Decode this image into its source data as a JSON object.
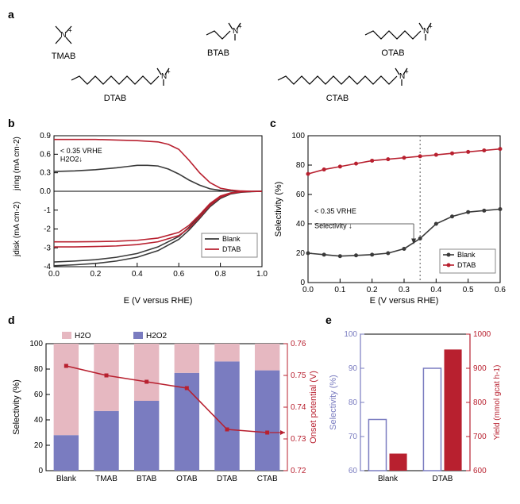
{
  "panel_a": {
    "label": "a",
    "molecules_row1": [
      {
        "name": "TMAB"
      },
      {
        "name": "BTAB"
      },
      {
        "name": "OTAB"
      }
    ],
    "molecules_row2": [
      {
        "name": "DTAB"
      },
      {
        "name": "CTAB"
      }
    ]
  },
  "panel_b": {
    "label": "b",
    "xlabel": "E (V versus RHE)",
    "ylabel_top": "jring (mA cm-2)",
    "ylabel_bot": "jdisk (mA cm-2)",
    "xlim": [
      0.0,
      1.0
    ],
    "xtick_step": 0.2,
    "ytop_lim": [
      0,
      0.9
    ],
    "ytop_ticks": [
      0.0,
      0.3,
      0.6,
      0.9
    ],
    "ybot_lim": [
      -4,
      0
    ],
    "ybot_ticks": [
      -1,
      -2,
      -3,
      -4
    ],
    "annotation1": "< 0.35 VRHE",
    "annotation2": "H2O2↓",
    "legend": [
      "Blank",
      "DTAB"
    ],
    "colors": {
      "Blank": "#3a3a3a",
      "DTAB": "#b8202f"
    },
    "ring": {
      "Blank": {
        "x": [
          0.0,
          0.1,
          0.2,
          0.3,
          0.35,
          0.4,
          0.45,
          0.5,
          0.55,
          0.6,
          0.65,
          0.7,
          0.75,
          0.8,
          0.85,
          0.9,
          0.95,
          1.0
        ],
        "y": [
          0.32,
          0.33,
          0.35,
          0.38,
          0.4,
          0.42,
          0.42,
          0.41,
          0.36,
          0.28,
          0.18,
          0.1,
          0.04,
          0.015,
          0.005,
          0.0,
          0.0,
          0.0
        ]
      },
      "DTAB": {
        "x": [
          0.0,
          0.1,
          0.2,
          0.3,
          0.4,
          0.5,
          0.55,
          0.6,
          0.65,
          0.7,
          0.75,
          0.8,
          0.85,
          0.9,
          0.95,
          1.0
        ],
        "y": [
          0.84,
          0.84,
          0.84,
          0.83,
          0.82,
          0.8,
          0.76,
          0.68,
          0.5,
          0.3,
          0.14,
          0.05,
          0.02,
          0.005,
          0.0,
          0.0
        ]
      }
    },
    "disk": {
      "Blank_a": {
        "x": [
          0.0,
          0.1,
          0.2,
          0.3,
          0.4,
          0.5,
          0.6,
          0.65,
          0.7,
          0.75,
          0.8,
          0.85,
          0.9,
          0.95,
          1.0
        ],
        "y": [
          -3.75,
          -3.7,
          -3.63,
          -3.5,
          -3.3,
          -2.95,
          -2.4,
          -1.9,
          -1.3,
          -0.7,
          -0.3,
          -0.1,
          -0.03,
          -0.01,
          0.0
        ]
      },
      "Blank_b": {
        "x": [
          0.0,
          0.1,
          0.2,
          0.3,
          0.4,
          0.5,
          0.6,
          0.65,
          0.7,
          0.75,
          0.8,
          0.85,
          0.9,
          0.95,
          1.0
        ],
        "y": [
          -3.95,
          -3.9,
          -3.83,
          -3.7,
          -3.5,
          -3.15,
          -2.55,
          -2.05,
          -1.45,
          -0.82,
          -0.38,
          -0.14,
          -0.05,
          -0.02,
          0.0
        ]
      },
      "DTAB_a": {
        "x": [
          0.0,
          0.1,
          0.2,
          0.3,
          0.4,
          0.5,
          0.6,
          0.65,
          0.7,
          0.75,
          0.8,
          0.85,
          0.9,
          0.95,
          1.0
        ],
        "y": [
          -2.68,
          -2.68,
          -2.67,
          -2.65,
          -2.6,
          -2.48,
          -2.18,
          -1.8,
          -1.25,
          -0.65,
          -0.25,
          -0.08,
          -0.02,
          -0.005,
          0.0
        ]
      },
      "DTAB_b": {
        "x": [
          0.0,
          0.1,
          0.2,
          0.3,
          0.4,
          0.5,
          0.6,
          0.65,
          0.7,
          0.75,
          0.8,
          0.85,
          0.9,
          0.95,
          1.0
        ],
        "y": [
          -2.95,
          -2.95,
          -2.93,
          -2.9,
          -2.83,
          -2.68,
          -2.35,
          -1.95,
          -1.38,
          -0.75,
          -0.32,
          -0.11,
          -0.03,
          -0.01,
          0.0
        ]
      }
    }
  },
  "panel_c": {
    "label": "c",
    "xlabel": "E (V versus RHE)",
    "ylabel": "Selectivity (%)",
    "xlim": [
      0.0,
      0.6
    ],
    "xtick_step": 0.1,
    "ylim": [
      0,
      100
    ],
    "ytick_step": 20,
    "annotation1": "< 0.35 VRHE",
    "annotation2": "Selectivity ↓",
    "vline_x": 0.35,
    "legend": [
      "Blank",
      "DTAB"
    ],
    "colors": {
      "Blank": "#3a3a3a",
      "DTAB": "#b8202f"
    },
    "series": {
      "Blank": {
        "x": [
          0.0,
          0.05,
          0.1,
          0.15,
          0.2,
          0.25,
          0.3,
          0.35,
          0.4,
          0.45,
          0.5,
          0.55,
          0.6
        ],
        "y": [
          20,
          19,
          18,
          18.5,
          19,
          20,
          23,
          30,
          40,
          45,
          48,
          49,
          50
        ]
      },
      "DTAB": {
        "x": [
          0.0,
          0.05,
          0.1,
          0.15,
          0.2,
          0.25,
          0.3,
          0.35,
          0.4,
          0.45,
          0.5,
          0.55,
          0.6
        ],
        "y": [
          74,
          77,
          79,
          81,
          83,
          84,
          85,
          86,
          87,
          88,
          89,
          90,
          91
        ]
      }
    }
  },
  "panel_d": {
    "label": "d",
    "ylabel_left": "Selectivity (%)",
    "ylabel_right": "Onset potential (V)",
    "categories": [
      "Blank",
      "TMAB",
      "BTAB",
      "OTAB",
      "DTAB",
      "CTAB"
    ],
    "ylim_left": [
      0,
      100
    ],
    "ytick_left": 20,
    "ylim_right": [
      0.72,
      0.76
    ],
    "ytick_right": 0.01,
    "legend": {
      "h2o": "H2O",
      "h2o2": "H2O2"
    },
    "colors": {
      "h2o": "#e6b8c1",
      "h2o2": "#7a7cc0",
      "onset": "#b8202f",
      "axis_right": "#b8202f"
    },
    "h2o2_pct": [
      28,
      47,
      55,
      77,
      86,
      79
    ],
    "onset_v": [
      0.753,
      0.75,
      0.748,
      0.746,
      0.733,
      0.732
    ]
  },
  "panel_e": {
    "label": "e",
    "ylabel_left": "Selectivity (%)",
    "ylabel_right": "Yield (mmol gcat h-1)",
    "categories": [
      "Blank",
      "DTAB"
    ],
    "ylim_left": [
      60,
      100
    ],
    "ytick_left": 10,
    "ylim_right": [
      600,
      1000
    ],
    "ytick_right": 100,
    "colors": {
      "sel": "#7a7cc0",
      "yield": "#b8202f",
      "axis_left": "#7a7cc0",
      "axis_right": "#b8202f"
    },
    "selectivity": [
      75,
      90
    ],
    "yield": [
      650,
      955
    ]
  }
}
